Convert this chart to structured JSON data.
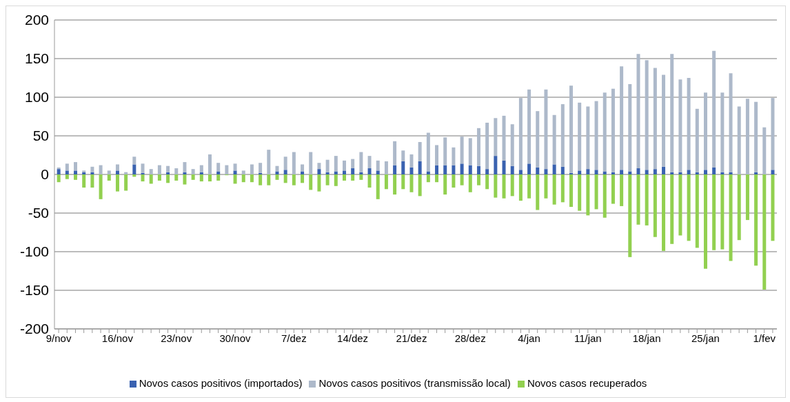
{
  "chart_data": {
    "type": "bar",
    "stacked": true,
    "categories": [
      "9/nov",
      null,
      null,
      null,
      null,
      null,
      null,
      "16/nov",
      null,
      null,
      null,
      null,
      null,
      null,
      "23/nov",
      null,
      null,
      null,
      null,
      null,
      null,
      "30/nov",
      null,
      null,
      null,
      null,
      null,
      null,
      "7/dez",
      null,
      null,
      null,
      null,
      null,
      null,
      "14/dez",
      null,
      null,
      null,
      null,
      null,
      null,
      "21/dez",
      null,
      null,
      null,
      null,
      null,
      null,
      "28/dez",
      null,
      null,
      null,
      null,
      null,
      null,
      "4/jan",
      null,
      null,
      null,
      null,
      null,
      null,
      "11/jan",
      null,
      null,
      null,
      null,
      null,
      null,
      "18/jan",
      null,
      null,
      null,
      null,
      null,
      null,
      "25/jan",
      null,
      null,
      null,
      null,
      null,
      null,
      "1/fev",
      null
    ],
    "series": [
      {
        "name": "Novos casos positivos (importados)",
        "color": "#3a62b0",
        "values": [
          7,
          5,
          5,
          3,
          3,
          0,
          0,
          5,
          0,
          13,
          2,
          0,
          0,
          3,
          0,
          3,
          0,
          3,
          0,
          4,
          0,
          5,
          0,
          0,
          2,
          0,
          4,
          6,
          0,
          4,
          0,
          7,
          3,
          4,
          5,
          8,
          3,
          8,
          5,
          0,
          12,
          17,
          9,
          17,
          4,
          12,
          12,
          12,
          14,
          12,
          11,
          7,
          24,
          18,
          11,
          6,
          14,
          9,
          7,
          13,
          10,
          2,
          5,
          7,
          6,
          4,
          3,
          6,
          4,
          8,
          6,
          7,
          10,
          3,
          3,
          6,
          3,
          6,
          9,
          3,
          3,
          0,
          0,
          3,
          0,
          6
        ]
      },
      {
        "name": "Novos casos positivos (transmissão local)",
        "color": "#adb9ca",
        "values": [
          2,
          9,
          11,
          2,
          7,
          12,
          5,
          8,
          3,
          10,
          12,
          7,
          12,
          8,
          8,
          13,
          7,
          9,
          26,
          11,
          12,
          9,
          5,
          13,
          13,
          32,
          7,
          17,
          29,
          9,
          29,
          8,
          16,
          20,
          13,
          12,
          26,
          16,
          13,
          17,
          31,
          14,
          17,
          25,
          50,
          26,
          36,
          23,
          35,
          35,
          49,
          60,
          49,
          58,
          54,
          93,
          96,
          73,
          103,
          64,
          81,
          113,
          88,
          81,
          89,
          102,
          108,
          134,
          113,
          148,
          142,
          131,
          119,
          153,
          120,
          119,
          82,
          100,
          151,
          103,
          128,
          88,
          98,
          91,
          61,
          93
        ]
      },
      {
        "name": "Novos casos recuperados",
        "color": "#92d050",
        "values": [
          -10,
          -6,
          -7,
          -17,
          -17,
          -32,
          -8,
          -22,
          -21,
          -3,
          -9,
          -12,
          -8,
          -11,
          -8,
          -13,
          -7,
          -9,
          -9,
          -8,
          -1,
          -12,
          -10,
          -10,
          -14,
          -14,
          -7,
          -11,
          -14,
          -11,
          -20,
          -22,
          -14,
          -15,
          -8,
          -8,
          -7,
          -17,
          -32,
          -19,
          -26,
          -19,
          -23,
          -28,
          -10,
          -10,
          -26,
          -17,
          -14,
          -23,
          -14,
          -19,
          -30,
          -31,
          -28,
          -34,
          -31,
          -46,
          -31,
          -39,
          -36,
          -42,
          -47,
          -53,
          -45,
          -56,
          -38,
          -41,
          -107,
          -65,
          -66,
          -81,
          -99,
          -90,
          -79,
          -86,
          -95,
          -122,
          -98,
          -97,
          -112,
          -85,
          -59,
          -118,
          -149,
          -86
        ]
      }
    ],
    "ylim": [
      -200,
      200
    ],
    "yticks": [
      -200,
      -150,
      -100,
      -50,
      0,
      50,
      100,
      150,
      200
    ],
    "grid": "y",
    "legend": "bottom"
  }
}
